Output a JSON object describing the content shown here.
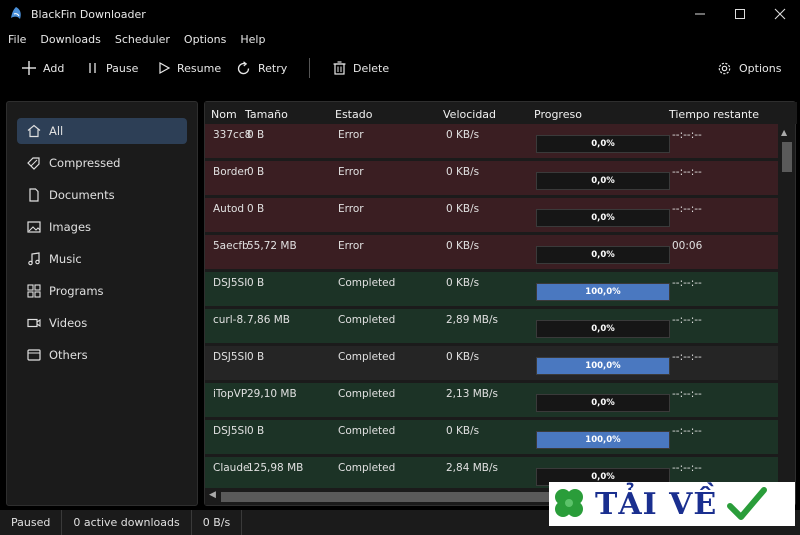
{
  "window": {
    "title": "BlackFin Downloader",
    "controls": [
      "—",
      "☐",
      "✕"
    ]
  },
  "menu": [
    "File",
    "Downloads",
    "Scheduler",
    "Options",
    "Help"
  ],
  "toolbar": {
    "add": "Add",
    "pause": "Pause",
    "resume": "Resume",
    "retry": "Retry",
    "delete": "Delete",
    "options": "Options"
  },
  "sidebar": {
    "items": [
      {
        "label": "All",
        "icon": "home-icon",
        "active": true
      },
      {
        "label": "Compressed",
        "icon": "tag-icon"
      },
      {
        "label": "Documents",
        "icon": "document-icon"
      },
      {
        "label": "Images",
        "icon": "image-icon"
      },
      {
        "label": "Music",
        "icon": "music-icon"
      },
      {
        "label": "Programs",
        "icon": "grid-icon"
      },
      {
        "label": "Videos",
        "icon": "video-icon"
      },
      {
        "label": "Others",
        "icon": "others-icon"
      }
    ]
  },
  "table": {
    "columns": [
      "Nom",
      "Tamaño",
      "Estado",
      "Velocidad",
      "Progreso",
      "Tiempo restante"
    ],
    "rows": [
      {
        "name": "337cc8",
        "size": "0 B",
        "status": "Error",
        "speed": "0 KB/s",
        "progress": 0,
        "progress_label": "0,0%",
        "remaining": "--:--:--"
      },
      {
        "name": "Border",
        "size": "0 B",
        "status": "Error",
        "speed": "0 KB/s",
        "progress": 0,
        "progress_label": "0,0%",
        "remaining": "--:--:--"
      },
      {
        "name": "Autod",
        "size": "0 B",
        "status": "Error",
        "speed": "0 KB/s",
        "progress": 0,
        "progress_label": "0,0%",
        "remaining": "--:--:--"
      },
      {
        "name": "5aecfb",
        "size": "55,72 MB",
        "status": "Error",
        "speed": "0 KB/s",
        "progress": 0,
        "progress_label": "0,0%",
        "remaining": "00:06"
      },
      {
        "name": "DSJ5SI",
        "size": "0 B",
        "status": "Completed",
        "speed": "0 KB/s",
        "progress": 100,
        "progress_label": "100,0%",
        "remaining": "--:--:--"
      },
      {
        "name": "curl-8.",
        "size": "7,86 MB",
        "status": "Completed",
        "speed": "2,89 MB/s",
        "progress": 0,
        "progress_label": "0,0%",
        "remaining": "--:--:--"
      },
      {
        "name": "DSJ5SI",
        "size": "0 B",
        "status": "Completed",
        "speed": "0 KB/s",
        "progress": 100,
        "progress_label": "100,0%",
        "remaining": "--:--:--"
      },
      {
        "name": "iTopVP",
        "size": "29,10 MB",
        "status": "Completed",
        "speed": "2,13 MB/s",
        "progress": 0,
        "progress_label": "0,0%",
        "remaining": "--:--:--"
      },
      {
        "name": "DSJ5SI",
        "size": "0 B",
        "status": "Completed",
        "speed": "0 KB/s",
        "progress": 100,
        "progress_label": "100,0%",
        "remaining": "--:--:--"
      },
      {
        "name": "Claude",
        "size": "125,98 MB",
        "status": "Completed",
        "speed": "2,84 MB/s",
        "progress": 0,
        "progress_label": "0,0%",
        "remaining": "--:--:--"
      }
    ]
  },
  "status": {
    "state": "Paused",
    "active": "0 active downloads",
    "speed": "0 B/s"
  },
  "watermark": {
    "text": "TẢI VỀ"
  },
  "colors": {
    "error_row": "#3a1e22",
    "completed_row": "#1c3326",
    "progress_fill": "#4a78c0",
    "accent": "#2d3f56"
  }
}
